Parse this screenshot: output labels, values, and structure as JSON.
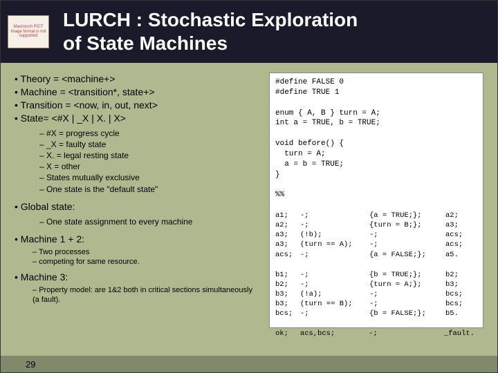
{
  "colors": {
    "slide_bg": "#b0b890",
    "title_bg": "#1a1a2a",
    "title_fg": "#ffffff",
    "code_bg": "#ffffff",
    "footer_bg": "#808a6a",
    "logo_border": "#a08060",
    "logo_bg": "#f5f0e8",
    "logo_fg": "#c04040"
  },
  "title_line1": "LURCH : Stochastic Exploration",
  "title_line2": "of State Machines",
  "logo_text": "Macintosh PICT image format is not supported",
  "theory": {
    "b1": "Theory     = <machine+>",
    "b2": "Machine   = <transition*, state+>",
    "b3": "Transition = <now, in, out, next>",
    "b4": "State= <#X | _X | X. | X>",
    "s1": "#X  = progress cycle",
    "s2": "_X  = faulty state",
    "s3": "X.   = legal resting state",
    "s4": "X    = other",
    "s5": "States mutually exclusive",
    "s6": "One state is the \"default state\""
  },
  "global": {
    "label": "Global state:",
    "sub": "One state assignment to every machine"
  },
  "machines": {
    "m12": "Machine 1 + 2:",
    "m12a": "Two processes",
    "m12b": "competing for same resource.",
    "m3": "Machine 3:",
    "m3a": "Property model: are 1&2 both in critical sections simultaneously (a fault)."
  },
  "code": {
    "defines": "#define FALSE 0\n#define TRUE 1",
    "enum": "enum { A, B } turn = A;\nint a = TRUE, b = TRUE;",
    "before": "void before() {\n  turn = A;\n  a = b = TRUE;\n}",
    "sep": "%%",
    "blockA": [
      [
        "a1;",
        "-;",
        "{a = TRUE;};",
        "a2;"
      ],
      [
        "a2;",
        "-;",
        "{turn = B;};",
        "a3;"
      ],
      [
        "a3;",
        "(!b);",
        "-;",
        "acs;"
      ],
      [
        "a3;",
        "(turn == A);",
        "-;",
        "acs;"
      ],
      [
        "acs;",
        "-;",
        "{a = FALSE;};",
        "a5."
      ]
    ],
    "blockB": [
      [
        "b1;",
        "-;",
        "{b = TRUE;};",
        "b2;"
      ],
      [
        "b2;",
        "-;",
        "{turn = A;};",
        "b3;"
      ],
      [
        "b3;",
        "(!a);",
        "-;",
        "bcs;"
      ],
      [
        "b3;",
        "(turn == B);",
        "-;",
        "bcs;"
      ],
      [
        "bcs;",
        "-;",
        "{b = FALSE;};",
        "b5."
      ]
    ],
    "ok": [
      "ok;",
      "acs,bcs;",
      "-;",
      "_fault."
    ]
  },
  "page_number": "29"
}
